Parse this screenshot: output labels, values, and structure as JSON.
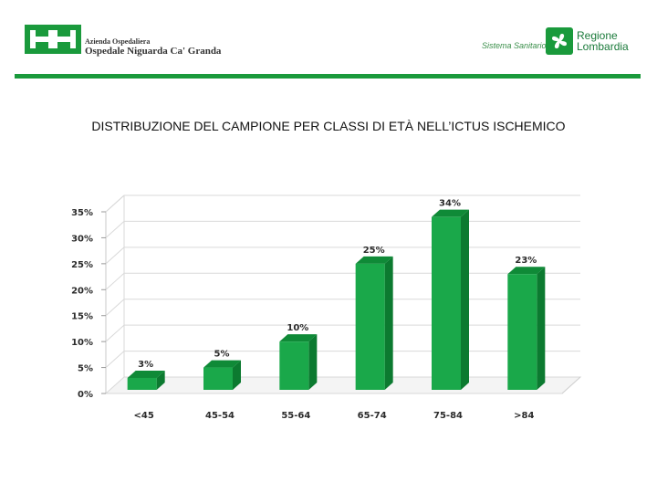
{
  "header": {
    "org_sub": "Azienda Ospedaliera",
    "org_name": "Ospedale Niguarda Ca' Granda",
    "system_label": "Sistema Sanitario",
    "region_line1": "Regione",
    "region_line2": "Lombardia",
    "brand_color": "#1a9a3c"
  },
  "chart_data": {
    "type": "bar",
    "title": "DISTRIBUZIONE DEL CAMPIONE PER CLASSI DI ETÀ NELL’ICTUS ISCHEMICO",
    "categories": [
      "<45",
      "45-54",
      "55-64",
      "65-74",
      "75-84",
      ">84"
    ],
    "values": [
      3,
      5,
      10,
      25,
      34,
      23
    ],
    "data_labels": [
      "3%",
      "5%",
      "10%",
      "25%",
      "34%",
      "23%"
    ],
    "ylim": [
      0,
      35
    ],
    "yticks": [
      "0%",
      "5%",
      "10%",
      "15%",
      "20%",
      "25%",
      "30%",
      "35%"
    ],
    "grid": true,
    "style": "3d-column",
    "bar_color": "#1aa84a"
  }
}
